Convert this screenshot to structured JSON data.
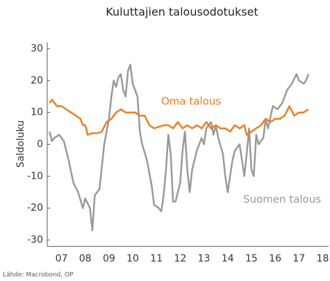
{
  "chart_data": {
    "type": "line",
    "title": "Kuluttajien talousodotukset",
    "y_label": "Saldoluku",
    "source": "Lähde: Macrobond, OP",
    "xlim": [
      2006.9,
      2018.75
    ],
    "ylim": [
      -32,
      32
    ],
    "yticks": [
      -30,
      -20,
      -10,
      0,
      10,
      20,
      30
    ],
    "xticks": [
      {
        "value": 2007.5,
        "label": "07"
      },
      {
        "value": 2008.5,
        "label": "08"
      },
      {
        "value": 2009.5,
        "label": "09"
      },
      {
        "value": 2010.5,
        "label": "10"
      },
      {
        "value": 2011.5,
        "label": "11"
      },
      {
        "value": 2012.5,
        "label": "12"
      },
      {
        "value": 2013.5,
        "label": "13"
      },
      {
        "value": 2014.5,
        "label": "14"
      },
      {
        "value": 2015.5,
        "label": "15"
      },
      {
        "value": 2016.5,
        "label": "16"
      },
      {
        "value": 2017.5,
        "label": "17"
      },
      {
        "value": 2018.5,
        "label": "18"
      }
    ],
    "series": [
      {
        "name": "Oma talous",
        "color": "#f07d1e",
        "x": [
          2007.0,
          2007.1,
          2007.3,
          2007.5,
          2007.7,
          2007.9,
          2008.1,
          2008.3,
          2008.4,
          2008.5,
          2008.6,
          2008.8,
          2009.0,
          2009.2,
          2009.4,
          2009.6,
          2009.8,
          2010.0,
          2010.2,
          2010.4,
          2010.6,
          2010.8,
          2011.0,
          2011.2,
          2011.4,
          2011.6,
          2011.8,
          2012.0,
          2012.2,
          2012.4,
          2012.6,
          2012.8,
          2013.0,
          2013.2,
          2013.4,
          2013.6,
          2013.8,
          2014.0,
          2014.2,
          2014.4,
          2014.6,
          2014.8,
          2015.0,
          2015.2,
          2015.3,
          2015.5,
          2015.7,
          2015.9,
          2016.1,
          2016.3,
          2016.5,
          2016.7,
          2016.9,
          2017.1,
          2017.3,
          2017.5,
          2017.7,
          2017.9
        ],
        "values": [
          13,
          14,
          12,
          12,
          11,
          10,
          9,
          8,
          6,
          6,
          3,
          3.5,
          3.5,
          4,
          7,
          8,
          10,
          11,
          10,
          10,
          10,
          9,
          9,
          6,
          5,
          5.5,
          6,
          6,
          5,
          7,
          5,
          6,
          5,
          6,
          5,
          7,
          5,
          6,
          5,
          5,
          4,
          6,
          5,
          6,
          3,
          4,
          5,
          6,
          8,
          7,
          8,
          8,
          9,
          12,
          9,
          10,
          10,
          11
        ]
      },
      {
        "name": "Suomen talous",
        "color": "#999999",
        "x": [
          2007.0,
          2007.1,
          2007.2,
          2007.4,
          2007.6,
          2007.8,
          2008.0,
          2008.2,
          2008.4,
          2008.5,
          2008.7,
          2008.8,
          2008.9,
          2009.1,
          2009.3,
          2009.5,
          2009.6,
          2009.7,
          2009.8,
          2009.9,
          2010.0,
          2010.1,
          2010.2,
          2010.3,
          2010.4,
          2010.5,
          2010.7,
          2010.8,
          2010.9,
          2011.1,
          2011.3,
          2011.4,
          2011.6,
          2011.7,
          2011.8,
          2011.9,
          2012.0,
          2012.1,
          2012.2,
          2012.3,
          2012.5,
          2012.6,
          2012.7,
          2012.8,
          2012.9,
          2013.0,
          2013.2,
          2013.4,
          2013.5,
          2013.6,
          2013.8,
          2013.9,
          2014.0,
          2014.1,
          2014.3,
          2014.4,
          2014.5,
          2014.6,
          2014.7,
          2014.8,
          2015.0,
          2015.1,
          2015.2,
          2015.3,
          2015.4,
          2015.5,
          2015.6,
          2015.7,
          2015.8,
          2016.0,
          2016.1,
          2016.2,
          2016.4,
          2016.6,
          2016.8,
          2017.0,
          2017.2,
          2017.4,
          2017.5,
          2017.7,
          2017.8,
          2017.9
        ],
        "values": [
          4,
          1,
          2,
          3,
          1,
          -5,
          -12,
          -15,
          -20,
          -17,
          -20,
          -27,
          -16,
          -14,
          0,
          8,
          15,
          20,
          18,
          21,
          22,
          17,
          15,
          23,
          25,
          19,
          15,
          4,
          0,
          -5,
          -13,
          -19,
          -20,
          -21,
          -16,
          -8,
          3,
          -3,
          -18,
          -18,
          -12,
          -2,
          4,
          -8,
          -15,
          -8,
          -2,
          2,
          0,
          5,
          7,
          3,
          6,
          2,
          -3,
          -10,
          -15,
          -10,
          -5,
          -2,
          0,
          -5,
          -10,
          -3,
          5,
          -8,
          -10,
          3,
          0,
          2,
          8,
          5,
          12,
          11,
          13,
          17,
          19,
          22,
          20,
          19,
          20,
          22
        ]
      }
    ]
  }
}
